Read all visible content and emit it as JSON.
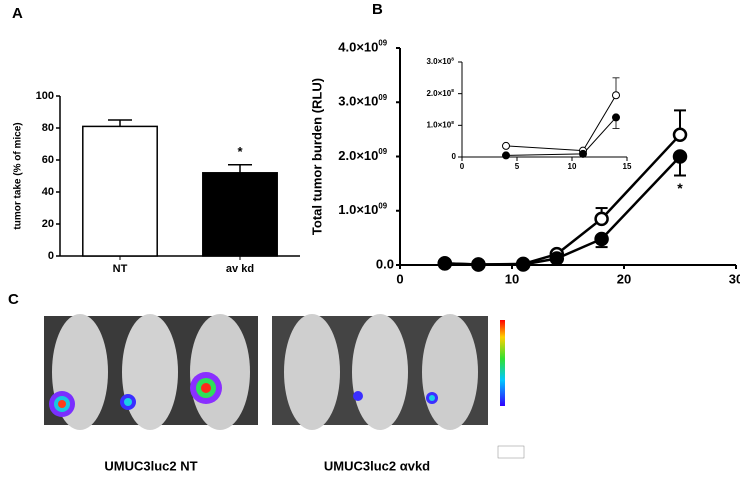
{
  "chart_data": [
    {
      "type": "bar",
      "panel": "A",
      "ylabel": "tumor take (% of mice)",
      "categories": [
        "NT",
        "av kd"
      ],
      "values": [
        81,
        52
      ],
      "errors": [
        4,
        5
      ],
      "colors": [
        "#ffffff",
        "#000000"
      ],
      "annotation": "*",
      "ylim": [
        0,
        100
      ],
      "yticks": [
        0,
        20,
        40,
        60,
        80,
        100
      ]
    },
    {
      "type": "line",
      "panel": "B",
      "ylabel": "Total tumor burden (RLU)",
      "x": [
        4,
        7,
        11,
        14,
        18,
        25
      ],
      "series": [
        {
          "color": "#000000",
          "marker_fill": "#ffffff",
          "values": [
            30000000,
            10000000,
            20000000,
            200000000,
            850000000,
            2400000000
          ],
          "errors": [
            null,
            null,
            null,
            null,
            200000000,
            450000000
          ]
        },
        {
          "color": "#000000",
          "marker_fill": "#000000",
          "values": [
            30000000,
            10000000,
            10000000,
            120000000,
            480000000,
            2000000000
          ],
          "errors": [
            null,
            null,
            null,
            null,
            150000000,
            350000000
          ]
        }
      ],
      "annotation": "*",
      "xlim": [
        0,
        30
      ],
      "xticks": [
        0,
        10,
        20,
        30
      ],
      "ylim": [
        0,
        4000000000
      ],
      "yticks": [
        {
          "value": 0,
          "label": "0.0"
        },
        {
          "value": 1000000000,
          "label": "1.0×10",
          "sup": "09"
        },
        {
          "value": 2000000000,
          "label": "2.0×10",
          "sup": "09"
        },
        {
          "value": 3000000000,
          "label": "3.0×10",
          "sup": "09"
        },
        {
          "value": 4000000000,
          "label": "4.0×10",
          "sup": "09"
        }
      ]
    },
    {
      "type": "line",
      "x": [
        4,
        11,
        14
      ],
      "series": [
        {
          "color": "#000000",
          "marker_fill": "#ffffff",
          "values": [
            35000000,
            20000000,
            195000000
          ],
          "errors": [
            null,
            null,
            55000000
          ]
        },
        {
          "color": "#000000",
          "marker_fill": "#000000",
          "values": [
            5000000,
            10000000,
            125000000
          ],
          "errors": [
            null,
            null,
            35000000
          ]
        }
      ],
      "xlim": [
        0,
        15
      ],
      "xticks": [
        0,
        5,
        10,
        15
      ],
      "ylim": [
        0,
        300000000
      ],
      "yticks": [
        0,
        {
          "value": 100000000,
          "label": "1.0×10",
          "sup": "8"
        },
        {
          "value": 200000000,
          "label": "2.0×10",
          "sup": "8"
        },
        {
          "value": 300000000,
          "label": "3.0×10",
          "sup": "8"
        }
      ]
    }
  ],
  "panel_c": {
    "label": "C",
    "captions": [
      "UMUC3luc2 NT",
      "UMUC3luc2 αvkd"
    ]
  }
}
